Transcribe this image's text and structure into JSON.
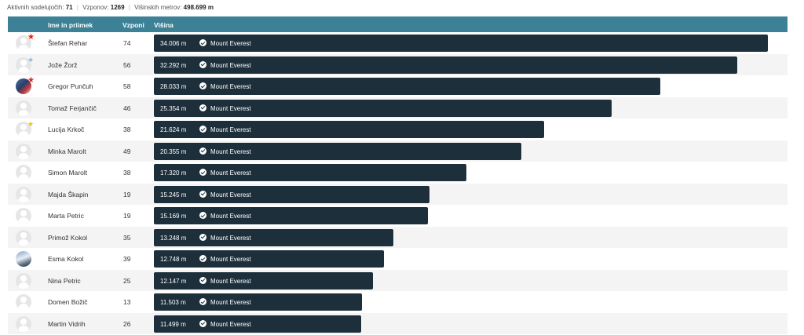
{
  "summary": {
    "active_label": "Aktivnih sodelujočih:",
    "active_value": "71",
    "climbs_label": "Vzponov:",
    "climbs_value": "1269",
    "meters_label": "Višinskih metrov:",
    "meters_value": "498.699 m"
  },
  "table": {
    "headers": {
      "name": "Ime in priimek",
      "climbs": "Vzponi",
      "height": "Višina"
    },
    "max_height_m": 34006,
    "rows": [
      {
        "name": "Štefan Rehar",
        "climbs": "74",
        "height": "34.006 m",
        "height_m": 34006,
        "peak": "Mount Everest",
        "avatar": "default",
        "badge": "red-star"
      },
      {
        "name": "Jože Žorž",
        "climbs": "56",
        "height": "32.292 m",
        "height_m": 32292,
        "peak": "Mount Everest",
        "avatar": "default",
        "badge": "blue-star"
      },
      {
        "name": "Gregor Punčuh",
        "climbs": "58",
        "height": "28.033 m",
        "height_m": 28033,
        "peak": "Mount Everest",
        "avatar": "photo1",
        "badge": "red-star"
      },
      {
        "name": "Tomaž Ferjančič",
        "climbs": "46",
        "height": "25.354 m",
        "height_m": 25354,
        "peak": "Mount Everest",
        "avatar": "default",
        "badge": ""
      },
      {
        "name": "Lucija Krkoč",
        "climbs": "38",
        "height": "21.624 m",
        "height_m": 21624,
        "peak": "Mount Everest",
        "avatar": "default",
        "badge": "gold-star"
      },
      {
        "name": "Minka Marolt",
        "climbs": "49",
        "height": "20.355 m",
        "height_m": 20355,
        "peak": "Mount Everest",
        "avatar": "default",
        "badge": ""
      },
      {
        "name": "Simon Marolt",
        "climbs": "38",
        "height": "17.320 m",
        "height_m": 17320,
        "peak": "Mount Everest",
        "avatar": "default",
        "badge": ""
      },
      {
        "name": "Majda Škapin",
        "climbs": "19",
        "height": "15.245 m",
        "height_m": 15245,
        "peak": "Mount Everest",
        "avatar": "default",
        "badge": ""
      },
      {
        "name": "Marta Petric",
        "climbs": "19",
        "height": "15.169 m",
        "height_m": 15169,
        "peak": "Mount Everest",
        "avatar": "default",
        "badge": ""
      },
      {
        "name": "Primož Kokol",
        "climbs": "35",
        "height": "13.248 m",
        "height_m": 13248,
        "peak": "Mount Everest",
        "avatar": "default",
        "badge": ""
      },
      {
        "name": "Esma Kokol",
        "climbs": "39",
        "height": "12.748 m",
        "height_m": 12748,
        "peak": "Mount Everest",
        "avatar": "photo2",
        "badge": ""
      },
      {
        "name": "Nina Petric",
        "climbs": "25",
        "height": "12.147 m",
        "height_m": 12147,
        "peak": "Mount Everest",
        "avatar": "default",
        "badge": ""
      },
      {
        "name": "Domen Božič",
        "climbs": "13",
        "height": "11.503 m",
        "height_m": 11503,
        "peak": "Mount Everest",
        "avatar": "default",
        "badge": ""
      },
      {
        "name": "Martin Vidrih",
        "climbs": "26",
        "height": "11.499 m",
        "height_m": 11499,
        "peak": "Mount Everest",
        "avatar": "default",
        "badge": ""
      }
    ]
  },
  "colors": {
    "header_bg": "#3d8196",
    "bar_bg": "#1c2f3b",
    "row_alt": "#f4f4f4"
  }
}
